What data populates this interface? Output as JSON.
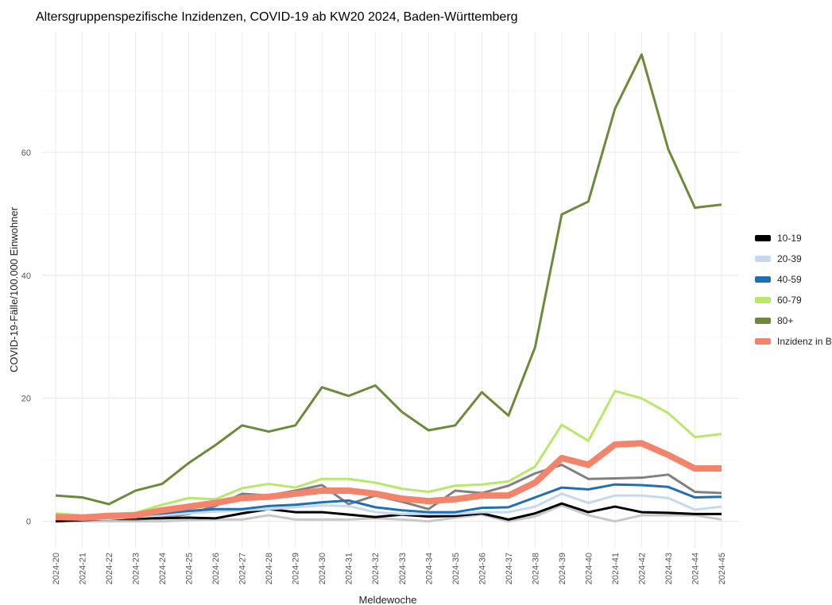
{
  "chart_data": {
    "type": "line",
    "title": "Altersgruppenspezifische Inzidenzen, COVID-19 ab KW20 2024, Baden-Württemberg",
    "x_label": "Meldewoche",
    "y_label": "COVID-19-Fälle/100.000 Einwohner",
    "categories": [
      "2024-20",
      "2024-21",
      "2024-22",
      "2024-23",
      "2024-24",
      "2024-25",
      "2024-26",
      "2024-27",
      "2024-28",
      "2024-29",
      "2024-30",
      "2024-31",
      "2024-32",
      "2024-33",
      "2024-34",
      "2024-35",
      "2024-36",
      "2024-37",
      "2024-38",
      "2024-39",
      "2024-40",
      "2024-41",
      "2024-42",
      "2024-43",
      "2024-44",
      "2024-45"
    ],
    "ylim": [
      -4.3,
      79.6
    ],
    "yticks": [
      0,
      20,
      40,
      60
    ],
    "minor_yticks": [
      10,
      30,
      50,
      70
    ],
    "grid": true,
    "legend": "right",
    "series": [
      {
        "color": "#c8c8c8",
        "line_width": 3,
        "values": [
          0.1,
          0.0,
          0.0,
          0.0,
          0.0,
          0.2,
          0.3,
          0.3,
          1.0,
          0.3,
          0.3,
          0.3,
          0.5,
          0.3,
          0.0,
          0.6,
          1.1,
          0.0,
          0.8,
          2.6,
          1.0,
          0.0,
          1.0,
          1.0,
          1.0,
          0.3
        ]
      },
      {
        "color": "#808080",
        "line_width": 3,
        "values": [
          0.2,
          0.3,
          0.4,
          0.3,
          0.6,
          1.2,
          2.5,
          4.5,
          4.2,
          5.0,
          5.9,
          2.8,
          4.2,
          3.2,
          2.0,
          5.0,
          4.6,
          5.8,
          7.8,
          9.2,
          6.9,
          7.0,
          7.1,
          7.6,
          4.8,
          4.6
        ]
      },
      {
        "name": "10-19",
        "color": "#000000",
        "line_width": 3,
        "values": [
          0.0,
          0.2,
          0.4,
          0.5,
          0.5,
          0.6,
          0.5,
          1.3,
          2.0,
          1.5,
          1.5,
          1.1,
          0.7,
          1.1,
          0.8,
          0.9,
          1.3,
          0.3,
          1.3,
          2.9,
          1.5,
          2.4,
          1.5,
          1.4,
          1.2,
          1.2
        ]
      },
      {
        "name": "20-39",
        "color": "#c6d8ee",
        "line_width": 3,
        "values": [
          0.5,
          0.3,
          0.4,
          0.7,
          1.0,
          1.3,
          1.6,
          1.8,
          2.0,
          2.3,
          2.6,
          2.5,
          1.5,
          1.2,
          1.2,
          1.2,
          1.5,
          1.5,
          2.4,
          4.5,
          3.0,
          4.2,
          4.2,
          3.8,
          1.9,
          2.4
        ]
      },
      {
        "name": "40-59",
        "color": "#1f6fb4",
        "line_width": 3,
        "values": [
          0.8,
          0.5,
          0.7,
          0.9,
          1.3,
          1.7,
          2.0,
          2.0,
          2.5,
          2.7,
          3.1,
          3.4,
          2.3,
          1.8,
          1.5,
          1.5,
          2.2,
          2.3,
          3.9,
          5.5,
          5.2,
          6.0,
          5.9,
          5.6,
          3.9,
          4.0
        ]
      },
      {
        "name": "60-79",
        "color": "#b8e86a",
        "line_width": 3,
        "values": [
          1.3,
          1.0,
          1.2,
          1.4,
          2.7,
          3.8,
          3.6,
          5.4,
          6.1,
          5.5,
          6.9,
          6.9,
          6.3,
          5.3,
          4.8,
          5.8,
          6.0,
          6.5,
          8.9,
          15.7,
          13.1,
          21.2,
          20.0,
          17.6,
          13.7,
          14.2
        ]
      },
      {
        "name": "80+",
        "color": "#6b8a3a",
        "line_width": 3,
        "values": [
          4.2,
          3.9,
          2.8,
          5.0,
          6.1,
          9.5,
          12.4,
          15.6,
          14.6,
          15.6,
          21.8,
          20.4,
          22.1,
          17.8,
          14.8,
          15.6,
          21.0,
          17.2,
          28.3,
          49.9,
          52.0,
          67.1,
          75.9,
          60.5,
          51.0,
          51.5
        ]
      },
      {
        "name": "Inzidenz in BW",
        "color": "#f4836b",
        "line_width": 8,
        "values": [
          0.7,
          0.6,
          0.9,
          1.0,
          1.8,
          2.4,
          3.0,
          3.8,
          4.0,
          4.5,
          5.0,
          5.0,
          4.5,
          3.7,
          3.3,
          3.6,
          4.2,
          4.2,
          6.3,
          10.3,
          9.2,
          12.5,
          12.7,
          10.8,
          8.6,
          8.6
        ]
      }
    ]
  }
}
